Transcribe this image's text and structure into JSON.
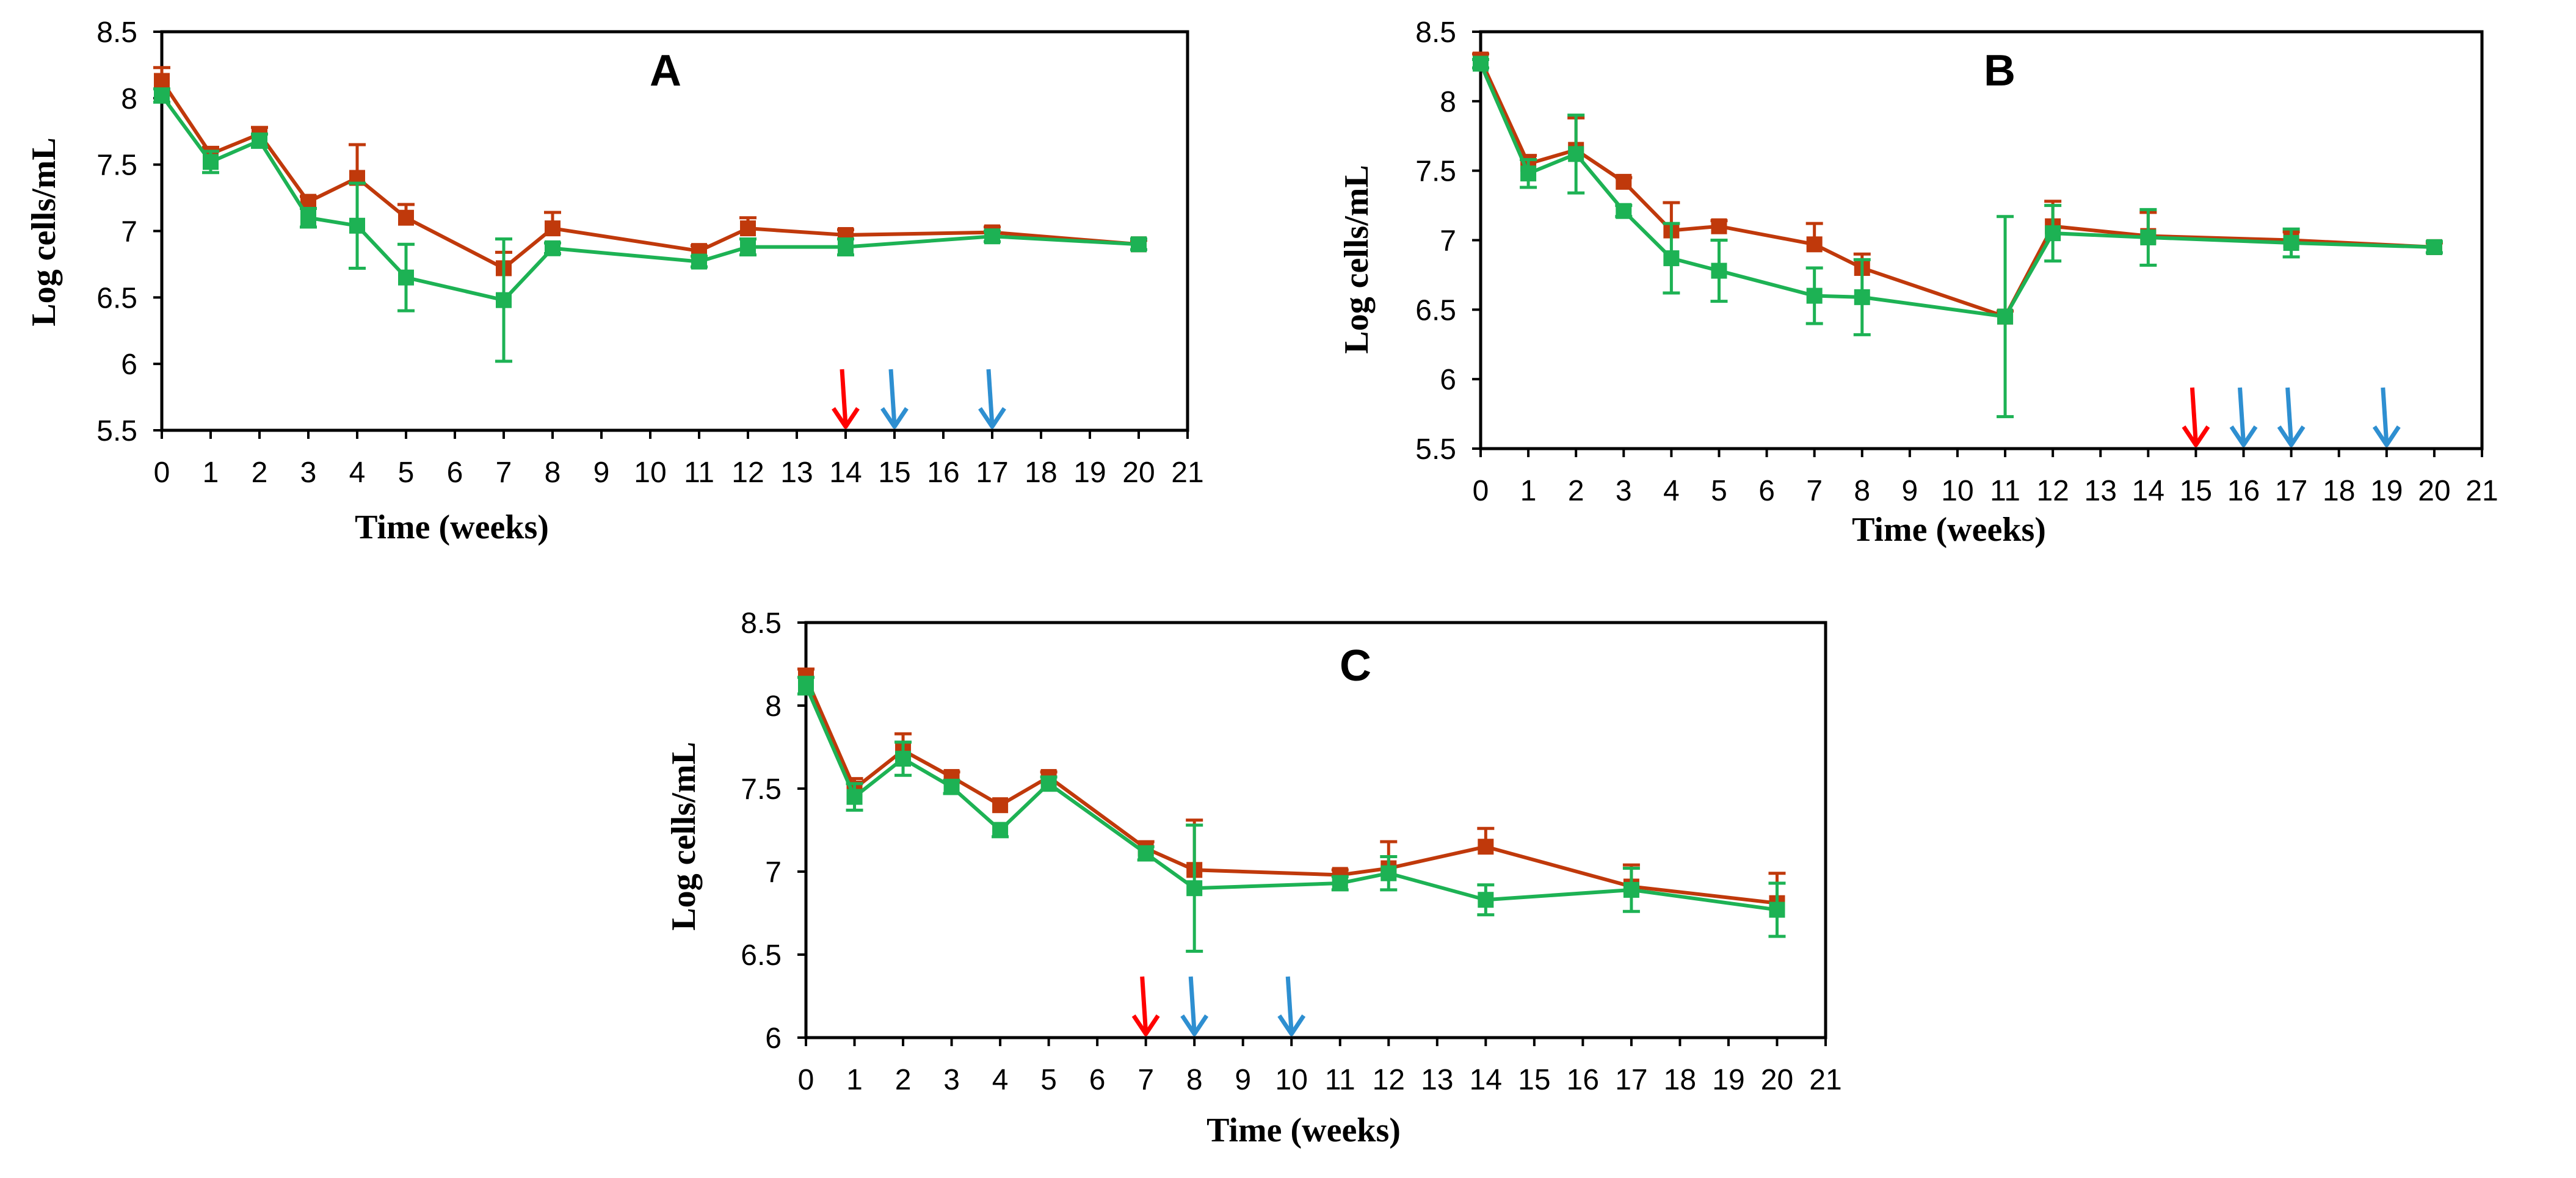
{
  "chart_data": [
    {
      "type": "line",
      "title": "A",
      "xlabel": "Time  (weeks)",
      "ylabel": "Log cells/mL",
      "xlim": [
        0,
        21
      ],
      "ylim": [
        5.5,
        8.5
      ],
      "xticks": [
        "0",
        "1",
        "2",
        "3",
        "4",
        "5",
        "6",
        "7",
        "8",
        "9",
        "10",
        "11",
        "12",
        "13",
        "14",
        "15",
        "16",
        "17",
        "18",
        "19",
        "20",
        "21"
      ],
      "yticks": [
        "5.5",
        "6",
        "6.5",
        "7",
        "7.5",
        "8",
        "8.5"
      ],
      "grid": false,
      "series": [
        {
          "name": "red",
          "color": "#c0390b",
          "x": [
            0,
            1,
            2,
            3,
            4,
            5,
            7,
            8,
            11,
            12,
            14,
            17,
            20
          ],
          "y": [
            8.13,
            7.58,
            7.73,
            7.22,
            7.4,
            7.1,
            6.72,
            7.02,
            6.85,
            7.02,
            6.97,
            6.99,
            6.9
          ],
          "err": [
            0.1,
            0.05,
            0.05,
            0.04,
            0.25,
            0.1,
            0.12,
            0.12,
            0.04,
            0.08,
            0.04,
            0.04,
            0.03
          ]
        },
        {
          "name": "green",
          "color": "#1db254",
          "x": [
            0,
            1,
            2,
            3,
            4,
            5,
            7,
            8,
            11,
            12,
            14,
            17,
            20
          ],
          "y": [
            8.02,
            7.52,
            7.68,
            7.1,
            7.04,
            6.65,
            6.48,
            6.87,
            6.77,
            6.88,
            6.88,
            6.96,
            6.9
          ],
          "err": [
            0.05,
            0.08,
            0.05,
            0.07,
            0.32,
            0.25,
            0.46,
            0.04,
            0.04,
            0.06,
            0.06,
            0.04,
            0.04
          ]
        }
      ],
      "arrows": [
        {
          "x": 14,
          "color": "#ff0000"
        },
        {
          "x": 15,
          "color": "#2e8fd1"
        },
        {
          "x": 17,
          "color": "#2e8fd1"
        }
      ]
    },
    {
      "type": "line",
      "title": "B",
      "xlabel": "Time  (weeks)",
      "ylabel": "Log cells/mL",
      "xlim": [
        0,
        21
      ],
      "ylim": [
        5.5,
        8.5
      ],
      "xticks": [
        "0",
        "1",
        "2",
        "3",
        "4",
        "5",
        "6",
        "7",
        "8",
        "9",
        "10",
        "11",
        "12",
        "13",
        "14",
        "15",
        "16",
        "17",
        "18",
        "19",
        "20",
        "21"
      ],
      "yticks": [
        "5.5",
        "6",
        "6.5",
        "7",
        "7.5",
        "8",
        "8.5"
      ],
      "grid": false,
      "series": [
        {
          "name": "red",
          "color": "#c0390b",
          "x": [
            0,
            1,
            2,
            3,
            4,
            5,
            7,
            8,
            11,
            12,
            14,
            17,
            20
          ],
          "y": [
            8.3,
            7.55,
            7.65,
            7.42,
            7.07,
            7.1,
            6.97,
            6.8,
            6.45,
            7.1,
            7.03,
            7.0,
            6.95
          ],
          "err": [
            0.04,
            0.06,
            0.23,
            0.03,
            0.2,
            0.04,
            0.15,
            0.1,
            0.04,
            0.18,
            0.17,
            0.06,
            0.03
          ]
        },
        {
          "name": "green",
          "color": "#1db254",
          "x": [
            0,
            1,
            2,
            3,
            4,
            5,
            7,
            8,
            11,
            12,
            14,
            17,
            20
          ],
          "y": [
            8.27,
            7.48,
            7.62,
            7.21,
            6.87,
            6.78,
            6.6,
            6.59,
            6.45,
            7.05,
            7.02,
            6.98,
            6.95
          ],
          "err": [
            0.03,
            0.1,
            0.28,
            0.04,
            0.25,
            0.22,
            0.2,
            0.27,
            0.72,
            0.2,
            0.2,
            0.1,
            0.04
          ]
        }
      ],
      "arrows": [
        {
          "x": 15,
          "color": "#ff0000"
        },
        {
          "x": 16,
          "color": "#2e8fd1"
        },
        {
          "x": 17,
          "color": "#2e8fd1"
        },
        {
          "x": 19,
          "color": "#2e8fd1"
        }
      ]
    },
    {
      "type": "line",
      "title": "C",
      "xlabel": "Time  (weeks)",
      "ylabel": "Log cells/mL",
      "xlim": [
        0,
        21
      ],
      "ylim": [
        6,
        8.5
      ],
      "xticks": [
        "0",
        "1",
        "2",
        "3",
        "4",
        "5",
        "6",
        "7",
        "8",
        "9",
        "10",
        "11",
        "12",
        "13",
        "14",
        "15",
        "16",
        "17",
        "18",
        "19",
        "20",
        "21"
      ],
      "yticks": [
        "6",
        "6.5",
        "7",
        "7.5",
        "8",
        "8.5"
      ],
      "grid": false,
      "series": [
        {
          "name": "red",
          "color": "#c0390b",
          "x": [
            0,
            1,
            2,
            3,
            4,
            5,
            7,
            8,
            11,
            12,
            14,
            17,
            20
          ],
          "y": [
            8.17,
            7.5,
            7.73,
            7.57,
            7.4,
            7.57,
            7.14,
            7.01,
            6.98,
            7.02,
            7.15,
            6.91,
            6.81
          ],
          "err": [
            0.05,
            0.06,
            0.1,
            0.03,
            0.03,
            0.03,
            0.04,
            0.3,
            0.03,
            0.16,
            0.11,
            0.13,
            0.18
          ]
        },
        {
          "name": "green",
          "color": "#1db254",
          "x": [
            0,
            1,
            2,
            3,
            4,
            5,
            7,
            8,
            11,
            12,
            14,
            17,
            20
          ],
          "y": [
            8.12,
            7.45,
            7.68,
            7.51,
            7.25,
            7.53,
            7.11,
            6.9,
            6.93,
            6.99,
            6.83,
            6.89,
            6.77
          ],
          "err": [
            0.05,
            0.08,
            0.1,
            0.04,
            0.04,
            0.04,
            0.04,
            0.38,
            0.04,
            0.1,
            0.09,
            0.13,
            0.16
          ]
        }
      ],
      "arrows": [
        {
          "x": 7,
          "color": "#ff0000"
        },
        {
          "x": 8,
          "color": "#2e8fd1"
        },
        {
          "x": 10,
          "color": "#2e8fd1"
        }
      ]
    }
  ]
}
